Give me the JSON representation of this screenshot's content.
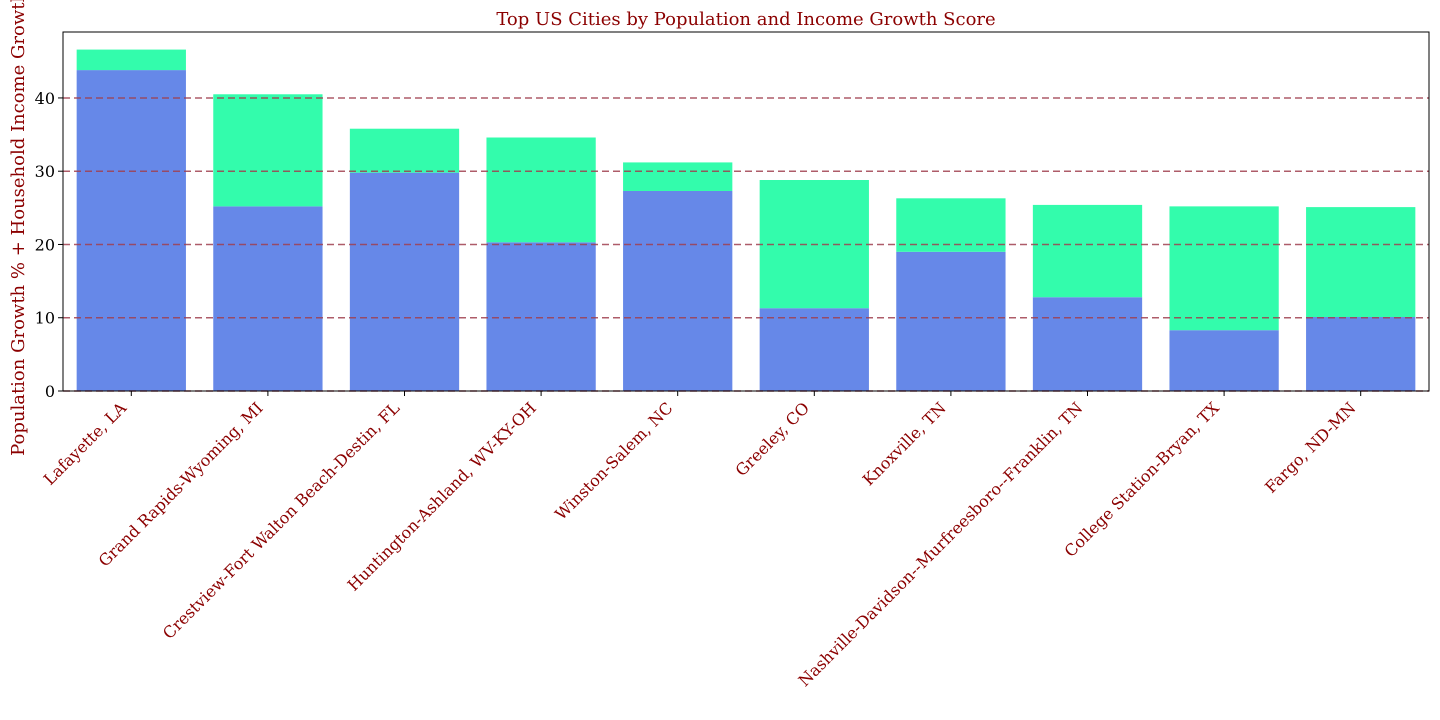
{
  "chart_data": {
    "type": "bar",
    "stacked": true,
    "title": "Top US Cities by Population and Income Growth Score",
    "xlabel": "",
    "ylabel": "Population Growth % + Household Income Growth %",
    "ylim": [
      0,
      49
    ],
    "yticks": [
      0,
      10,
      20,
      30,
      40
    ],
    "grid": "horizontal dashed",
    "categories": [
      "Lafayette, LA",
      "Grand Rapids-Wyoming, MI",
      "Crestview-Fort Walton Beach-Destin, FL",
      "Huntington-Ashland, WV-KY-OH",
      "Winston-Salem, NC",
      "Greeley, CO",
      "Knoxville, TN",
      "Nashville-Davidson--Murfreesboro--Franklin, TN",
      "College Station-Bryan, TX",
      "Fargo, ND-MN"
    ],
    "series": [
      {
        "values": [
          43.8,
          25.2,
          29.8,
          20.3,
          27.3,
          11.3,
          19.0,
          12.8,
          8.3,
          10.1
        ]
      },
      {
        "values": [
          2.8,
          15.3,
          6.0,
          14.3,
          3.9,
          17.5,
          7.3,
          12.6,
          16.9,
          15.0
        ]
      }
    ],
    "colors": {
      "series0": "#6688e8",
      "series1": "#33fcac",
      "grid": "#a04050",
      "text": "#8b0000"
    }
  }
}
